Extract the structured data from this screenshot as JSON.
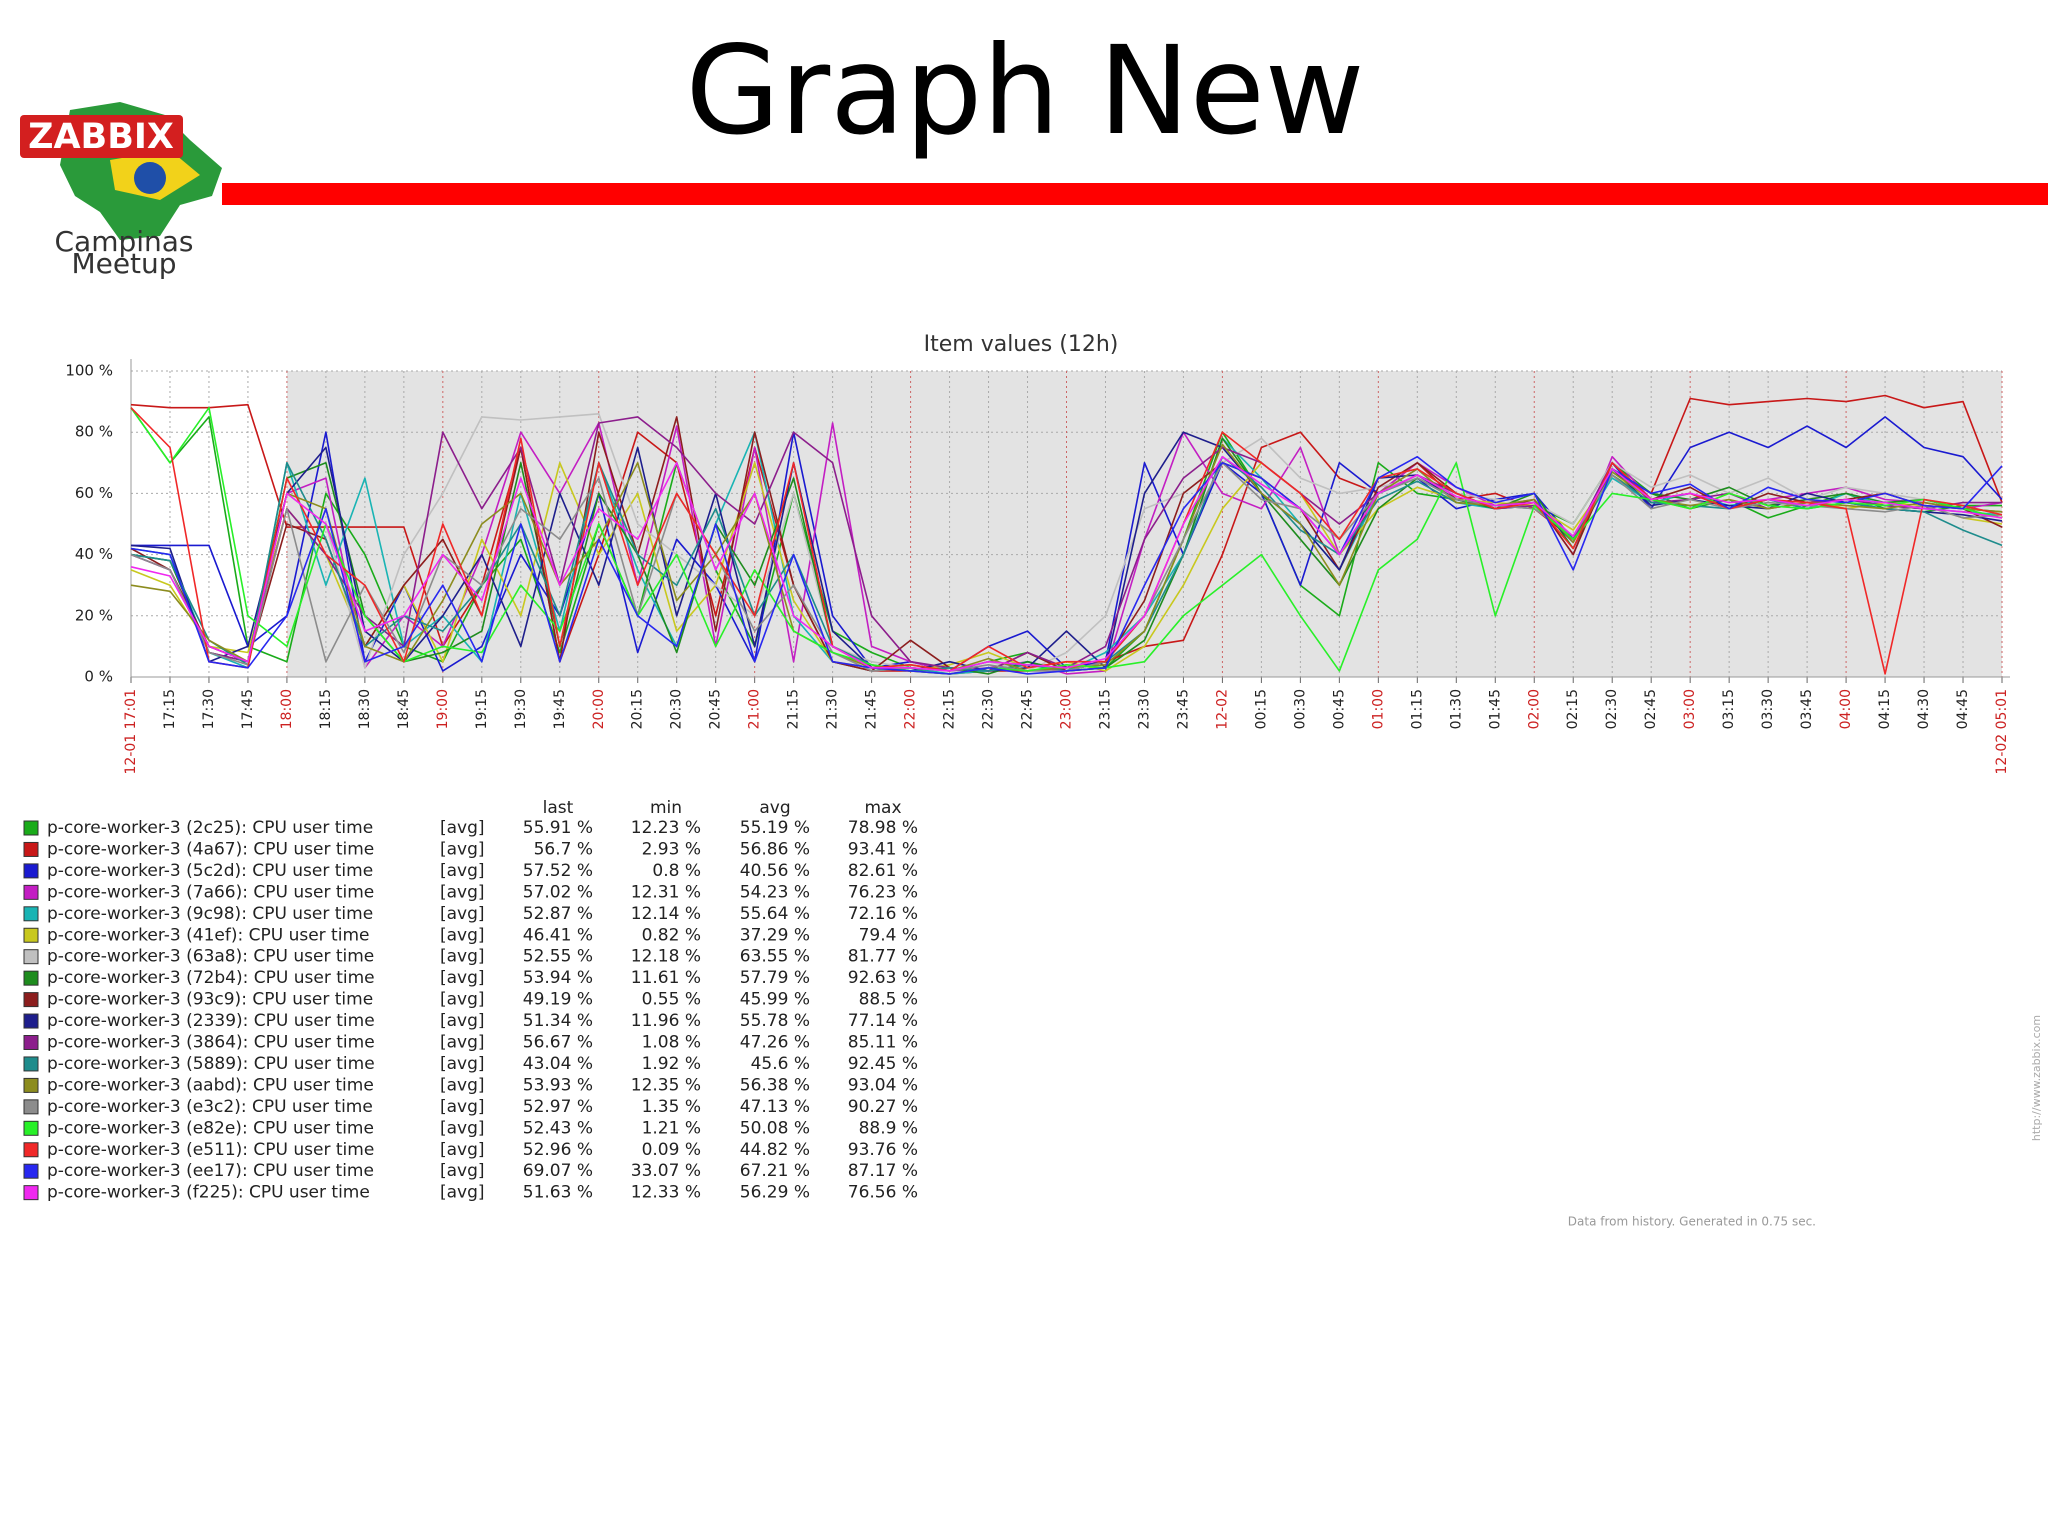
{
  "header": {
    "title": "Graph New"
  },
  "logo": {
    "text": "ZABBIX",
    "caption": [
      "Campinas",
      "Meetup"
    ]
  },
  "chart_data": {
    "type": "line",
    "title": "Item values (12h)",
    "categories": [
      "12-01 17:01",
      "17:15",
      "17:30",
      "17:45",
      "18:00",
      "18:15",
      "18:30",
      "18:45",
      "19:00",
      "19:15",
      "19:30",
      "19:45",
      "20:00",
      "20:15",
      "20:30",
      "20:45",
      "21:00",
      "21:15",
      "21:30",
      "21:45",
      "22:00",
      "22:15",
      "22:30",
      "22:45",
      "23:00",
      "23:15",
      "23:30",
      "23:45",
      "12-02",
      "00:15",
      "00:30",
      "00:45",
      "01:00",
      "01:15",
      "01:30",
      "01:45",
      "02:00",
      "02:15",
      "02:30",
      "02:45",
      "03:00",
      "03:15",
      "03:30",
      "03:45",
      "04:00",
      "04:15",
      "04:30",
      "04:45",
      "12-02 05:01"
    ],
    "ylim": [
      0,
      100
    ],
    "yticks": [
      {
        "value": 0,
        "label": "0 %"
      },
      {
        "value": 20,
        "label": "20 %"
      },
      {
        "value": 40,
        "label": "40 %"
      },
      {
        "value": 60,
        "label": "60 %"
      },
      {
        "value": 80,
        "label": "80 %"
      },
      {
        "value": 100,
        "label": "100 %"
      }
    ],
    "grid": true,
    "series": [
      {
        "name": "p-core-worker-3 (2c25): CPU user time",
        "color": "#1aab1a",
        "values": [
          88,
          70,
          85,
          10,
          5,
          60,
          40,
          10,
          5,
          30,
          45,
          8,
          50,
          20,
          70,
          35,
          10,
          60,
          15,
          8,
          3,
          2,
          5,
          8,
          2,
          3,
          15,
          45,
          80,
          60,
          30,
          20,
          70,
          60,
          58,
          55,
          56,
          50,
          70,
          60,
          55,
          58,
          52,
          56,
          60,
          55,
          54,
          56,
          56
        ]
      },
      {
        "name": "p-core-worker-3 (4a67): CPU user time",
        "color": "#c81818",
        "values": [
          89,
          88,
          88,
          89,
          49,
          49,
          49,
          49,
          10,
          30,
          75,
          5,
          40,
          80,
          70,
          20,
          75,
          30,
          5,
          2,
          2,
          1,
          2,
          2,
          3,
          5,
          10,
          12,
          40,
          75,
          80,
          65,
          60,
          70,
          58,
          60,
          55,
          45,
          68,
          60,
          91,
          89,
          90,
          91,
          90,
          92,
          88,
          90,
          57
        ]
      },
      {
        "name": "p-core-worker-3 (5c2d): CPU user time",
        "color": "#1a1ad0",
        "values": [
          43,
          43,
          43,
          10,
          20,
          80,
          5,
          30,
          2,
          10,
          40,
          20,
          60,
          8,
          45,
          30,
          5,
          80,
          20,
          3,
          5,
          2,
          10,
          15,
          3,
          5,
          70,
          40,
          70,
          60,
          30,
          70,
          60,
          65,
          55,
          58,
          60,
          45,
          70,
          55,
          75,
          80,
          75,
          82,
          75,
          85,
          75,
          72,
          58
        ]
      },
      {
        "name": "p-core-worker-3 (7a66): CPU user time",
        "color": "#c31ec3",
        "values": [
          40,
          35,
          10,
          5,
          60,
          65,
          3,
          20,
          10,
          40,
          80,
          60,
          83,
          30,
          82,
          10,
          75,
          5,
          83,
          10,
          5,
          2,
          3,
          5,
          1,
          2,
          45,
          80,
          60,
          55,
          75,
          40,
          60,
          70,
          62,
          56,
          58,
          40,
          72,
          58,
          60,
          55,
          58,
          60,
          62,
          58,
          57,
          55,
          57
        ]
      },
      {
        "name": "p-core-worker-3 (9c98): CPU user time",
        "color": "#19b4b4",
        "values": [
          42,
          40,
          8,
          3,
          70,
          30,
          65,
          10,
          20,
          5,
          60,
          15,
          70,
          35,
          10,
          50,
          80,
          20,
          5,
          2,
          3,
          1,
          2,
          5,
          2,
          8,
          20,
          40,
          78,
          65,
          50,
          35,
          60,
          68,
          57,
          55,
          56,
          45,
          65,
          57,
          60,
          56,
          58,
          55,
          60,
          56,
          55,
          54,
          53
        ]
      },
      {
        "name": "p-core-worker-3 (41ef): CPU user time",
        "color": "#c8c81e",
        "values": [
          35,
          30,
          10,
          8,
          55,
          40,
          10,
          30,
          5,
          45,
          20,
          70,
          40,
          60,
          15,
          30,
          70,
          25,
          5,
          3,
          2,
          4,
          8,
          3,
          5,
          2,
          10,
          30,
          55,
          70,
          60,
          40,
          55,
          62,
          58,
          57,
          56,
          48,
          66,
          58,
          55,
          60,
          56,
          58,
          55,
          57,
          56,
          52,
          50
        ]
      },
      {
        "name": "p-core-worker-3 (63a8): CPU user time",
        "color": "#c0c0c0",
        "values": [
          40,
          38,
          12,
          5,
          60,
          50,
          3,
          40,
          60,
          85,
          84,
          85,
          86,
          50,
          40,
          30,
          20,
          60,
          10,
          5,
          3,
          2,
          5,
          2,
          8,
          20,
          55,
          60,
          70,
          78,
          65,
          60,
          62,
          65,
          60,
          58,
          57,
          50,
          70,
          62,
          66,
          60,
          65,
          58,
          62,
          60,
          58,
          56,
          53
        ]
      },
      {
        "name": "p-core-worker-3 (72b4): CPU user time",
        "color": "#1e8c1e",
        "values": [
          40,
          38,
          8,
          5,
          65,
          70,
          20,
          5,
          8,
          15,
          70,
          10,
          60,
          40,
          8,
          50,
          30,
          65,
          10,
          3,
          2,
          3,
          1,
          5,
          2,
          3,
          12,
          40,
          78,
          60,
          45,
          30,
          55,
          65,
          58,
          55,
          60,
          42,
          68,
          60,
          58,
          62,
          56,
          58,
          60,
          57,
          58,
          55,
          54
        ]
      },
      {
        "name": "p-core-worker-3 (93c9): CPU user time",
        "color": "#8c1e1e",
        "values": [
          42,
          35,
          10,
          5,
          50,
          45,
          10,
          30,
          45,
          20,
          75,
          5,
          80,
          40,
          85,
          15,
          80,
          30,
          5,
          2,
          12,
          3,
          2,
          8,
          2,
          5,
          25,
          60,
          70,
          65,
          55,
          35,
          62,
          70,
          60,
          55,
          58,
          40,
          70,
          58,
          62,
          55,
          60,
          57,
          58,
          60,
          56,
          55,
          49
        ]
      },
      {
        "name": "p-core-worker-3 (2339): CPU user time",
        "color": "#1e1e8c",
        "values": [
          43,
          42,
          5,
          10,
          60,
          75,
          15,
          5,
          20,
          40,
          10,
          60,
          30,
          75,
          20,
          60,
          10,
          70,
          15,
          3,
          2,
          5,
          2,
          3,
          15,
          3,
          60,
          80,
          75,
          60,
          50,
          35,
          65,
          66,
          58,
          56,
          57,
          44,
          68,
          56,
          58,
          56,
          55,
          60,
          57,
          55,
          54,
          53,
          51
        ]
      },
      {
        "name": "p-core-worker-3 (3864): CPU user time",
        "color": "#8c1e8c",
        "values": [
          40,
          35,
          8,
          5,
          55,
          40,
          20,
          10,
          80,
          55,
          75,
          30,
          83,
          85,
          75,
          60,
          50,
          80,
          70,
          20,
          5,
          3,
          2,
          8,
          3,
          10,
          45,
          65,
          75,
          70,
          60,
          50,
          60,
          66,
          60,
          55,
          56,
          45,
          70,
          57,
          58,
          60,
          55,
          57,
          58,
          56,
          55,
          57,
          57
        ]
      },
      {
        "name": "p-core-worker-3 (5889): CPU user time",
        "color": "#1e8c8c",
        "values": [
          40,
          38,
          12,
          4,
          70,
          45,
          10,
          20,
          15,
          30,
          50,
          20,
          70,
          40,
          30,
          55,
          20,
          40,
          10,
          4,
          2,
          3,
          2,
          4,
          2,
          5,
          15,
          40,
          72,
          62,
          48,
          40,
          58,
          64,
          57,
          56,
          55,
          46,
          66,
          57,
          56,
          55,
          58,
          55,
          57,
          55,
          54,
          48,
          43
        ]
      },
      {
        "name": "p-core-worker-3 (aabd): CPU user time",
        "color": "#8c8c1e",
        "values": [
          30,
          28,
          12,
          5,
          60,
          55,
          10,
          5,
          25,
          50,
          60,
          30,
          45,
          70,
          25,
          40,
          60,
          15,
          8,
          3,
          4,
          2,
          6,
          2,
          3,
          4,
          15,
          45,
          76,
          60,
          50,
          30,
          60,
          68,
          57,
          56,
          58,
          44,
          67,
          58,
          56,
          58,
          55,
          57,
          56,
          55,
          57,
          55,
          54
        ]
      },
      {
        "name": "p-core-worker-3 (e3c2): CPU user time",
        "color": "#8c8c8c",
        "values": [
          40,
          35,
          8,
          4,
          55,
          5,
          30,
          8,
          40,
          30,
          55,
          45,
          65,
          20,
          60,
          40,
          15,
          30,
          8,
          2,
          3,
          2,
          4,
          2,
          2,
          5,
          20,
          45,
          70,
          58,
          55,
          45,
          60,
          65,
          58,
          56,
          55,
          46,
          66,
          55,
          58,
          55,
          57,
          56,
          55,
          54,
          56,
          52,
          53
        ]
      },
      {
        "name": "p-core-worker-3 (e82e): CPU user time",
        "color": "#28f028",
        "values": [
          88,
          70,
          88,
          20,
          10,
          50,
          20,
          5,
          10,
          8,
          30,
          15,
          50,
          20,
          40,
          10,
          35,
          15,
          8,
          4,
          2,
          1,
          3,
          2,
          4,
          3,
          5,
          20,
          30,
          40,
          20,
          2,
          35,
          45,
          70,
          20,
          56,
          45,
          60,
          58,
          55,
          60,
          56,
          55,
          57,
          56,
          58,
          55,
          52
        ]
      },
      {
        "name": "p-core-worker-3 (e511): CPU user time",
        "color": "#f02828",
        "values": [
          88,
          75,
          5,
          3,
          65,
          40,
          30,
          5,
          50,
          20,
          78,
          10,
          70,
          30,
          60,
          40,
          20,
          70,
          10,
          3,
          4,
          2,
          10,
          3,
          5,
          5,
          20,
          50,
          80,
          70,
          60,
          45,
          65,
          68,
          60,
          55,
          57,
          42,
          70,
          58,
          60,
          55,
          58,
          57,
          55,
          1,
          58,
          56,
          53
        ]
      },
      {
        "name": "p-core-worker-3 (ee17): CPU user time",
        "color": "#2828f0",
        "values": [
          42,
          40,
          5,
          3,
          20,
          55,
          5,
          10,
          30,
          5,
          50,
          5,
          45,
          20,
          10,
          50,
          5,
          40,
          5,
          3,
          2,
          1,
          3,
          1,
          2,
          3,
          30,
          55,
          70,
          65,
          55,
          40,
          65,
          72,
          62,
          57,
          60,
          35,
          68,
          60,
          63,
          55,
          62,
          58,
          57,
          60,
          56,
          55,
          69
        ]
      },
      {
        "name": "p-core-worker-3 (f225): CPU user time",
        "color": "#f028f0",
        "values": [
          36,
          33,
          10,
          5,
          60,
          50,
          15,
          20,
          40,
          25,
          65,
          30,
          55,
          45,
          70,
          35,
          60,
          20,
          10,
          3,
          3,
          2,
          5,
          4,
          3,
          6,
          20,
          50,
          72,
          63,
          55,
          40,
          60,
          66,
          59,
          56,
          57,
          46,
          68,
          58,
          60,
          57,
          58,
          56,
          58,
          57,
          55,
          54,
          52
        ]
      }
    ],
    "legend": {
      "headers": [
        "last",
        "min",
        "avg",
        "max"
      ],
      "rows": [
        [
          "[avg]",
          "55.91 %",
          "12.23 %",
          "55.19 %",
          "78.98 %"
        ],
        [
          "[avg]",
          "56.7 %",
          "2.93 %",
          "56.86 %",
          "93.41 %"
        ],
        [
          "[avg]",
          "57.52 %",
          "0.8 %",
          "40.56 %",
          "82.61 %"
        ],
        [
          "[avg]",
          "57.02 %",
          "12.31 %",
          "54.23 %",
          "76.23 %"
        ],
        [
          "[avg]",
          "52.87 %",
          "12.14 %",
          "55.64 %",
          "72.16 %"
        ],
        [
          "[avg]",
          "46.41 %",
          "0.82 %",
          "37.29 %",
          "79.4 %"
        ],
        [
          "[avg]",
          "52.55 %",
          "12.18 %",
          "63.55 %",
          "81.77 %"
        ],
        [
          "[avg]",
          "53.94 %",
          "11.61 %",
          "57.79 %",
          "92.63 %"
        ],
        [
          "[avg]",
          "49.19 %",
          "0.55 %",
          "45.99 %",
          "88.5 %"
        ],
        [
          "[avg]",
          "51.34 %",
          "11.96 %",
          "55.78 %",
          "77.14 %"
        ],
        [
          "[avg]",
          "56.67 %",
          "1.08 %",
          "47.26 %",
          "85.11 %"
        ],
        [
          "[avg]",
          "43.04 %",
          "1.92 %",
          "45.6 %",
          "92.45 %"
        ],
        [
          "[avg]",
          "53.93 %",
          "12.35 %",
          "56.38 %",
          "93.04 %"
        ],
        [
          "[avg]",
          "52.97 %",
          "1.35 %",
          "47.13 %",
          "90.27 %"
        ],
        [
          "[avg]",
          "52.43 %",
          "1.21 %",
          "50.08 %",
          "88.9 %"
        ],
        [
          "[avg]",
          "52.96 %",
          "0.09 %",
          "44.82 %",
          "93.76 %"
        ],
        [
          "[avg]",
          "69.07 %",
          "33.07 %",
          "67.21 %",
          "87.17 %"
        ],
        [
          "[avg]",
          "51.63 %",
          "12.33 %",
          "56.29 %",
          "76.56 %"
        ]
      ]
    },
    "footer": "Data from history. Generated in 0.75 sec.",
    "side_url": "http://www.zabbix.com"
  }
}
